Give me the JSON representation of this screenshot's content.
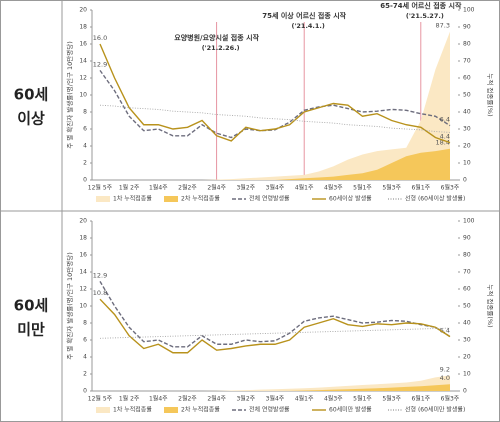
{
  "chart_data": [
    {
      "type": "line",
      "row_label": [
        "60세",
        "이상"
      ],
      "ylabel": "주 별 확진자 발생률(명/인구 10만명당)",
      "y2label": "누적 접종률(%)",
      "categories": [
        "12월 5주",
        null,
        "1월 2주",
        null,
        "1월4주",
        null,
        "2월2주",
        null,
        "2월4주",
        null,
        "3월2주",
        null,
        "3월4주",
        null,
        "4월1주",
        null,
        "4월3주",
        null,
        "5월1주",
        null,
        "5월3주",
        null,
        "6월1주",
        null,
        "6월3주"
      ],
      "ylim": [
        0,
        20
      ],
      "yticks": [
        0,
        2,
        4,
        6,
        8,
        10,
        12,
        14,
        16,
        18,
        20
      ],
      "y2lim": [
        0,
        100
      ],
      "y2ticks": [
        0,
        10,
        20,
        30,
        40,
        50,
        60,
        70,
        80,
        90,
        100
      ],
      "grid": false,
      "series": [
        {
          "name": "1차 누적접종률",
          "style": "area",
          "axis": "y2",
          "color": "#fbe8c4",
          "values": [
            0,
            0,
            0,
            0,
            0,
            0,
            0,
            0,
            0.2,
            0.5,
            1,
            1.5,
            2,
            2.5,
            3,
            5,
            8,
            12,
            15,
            17,
            18,
            19,
            35,
            65,
            87.3
          ],
          "value_labels": [
            null,
            null,
            null,
            null,
            null,
            null,
            null,
            null,
            null,
            null,
            null,
            null,
            null,
            null,
            null,
            null,
            null,
            null,
            null,
            null,
            null,
            null,
            null,
            null,
            "87.3"
          ]
        },
        {
          "name": "2차 누적접종률",
          "style": "area",
          "axis": "y2",
          "color": "#f5c75a",
          "values": [
            0,
            0,
            0,
            0,
            0,
            0,
            0,
            0,
            0,
            0,
            0,
            0,
            0,
            0.5,
            1,
            1.5,
            2,
            3,
            4,
            6,
            10,
            14,
            16,
            17,
            18.4
          ],
          "value_labels": [
            null,
            null,
            null,
            null,
            null,
            null,
            null,
            null,
            null,
            null,
            null,
            null,
            null,
            null,
            null,
            null,
            null,
            null,
            null,
            null,
            null,
            null,
            null,
            null,
            "18.4"
          ]
        },
        {
          "name": "전체 연령발생률",
          "style": "dashed",
          "color": "#6d6d7d",
          "values": [
            12.9,
            10.5,
            7.5,
            5.8,
            6,
            5.2,
            5.2,
            6.5,
            5.5,
            5,
            6,
            5.8,
            5.9,
            6.8,
            8.2,
            8.6,
            8.8,
            8.4,
            8,
            8.1,
            8.3,
            8.2,
            7.8,
            7.5,
            6.4
          ],
          "value_labels": [
            "12.9",
            null,
            null,
            null,
            null,
            null,
            null,
            null,
            null,
            null,
            null,
            null,
            null,
            null,
            null,
            null,
            null,
            null,
            null,
            null,
            null,
            null,
            null,
            null,
            "6.4"
          ]
        },
        {
          "name": "60세이상 발생률",
          "style": "solid",
          "color": "#b8921c",
          "values": [
            16,
            12,
            8.5,
            6.5,
            6.5,
            6,
            6.2,
            7,
            5.2,
            4.6,
            6.2,
            5.8,
            6,
            6.5,
            8,
            8.5,
            9,
            8.8,
            7.5,
            7.8,
            7,
            6.5,
            6.2,
            5,
            4.4
          ],
          "value_labels": [
            "16.0",
            null,
            null,
            null,
            null,
            null,
            null,
            null,
            null,
            null,
            null,
            null,
            null,
            null,
            null,
            null,
            null,
            null,
            null,
            null,
            null,
            null,
            null,
            null,
            "4.4"
          ]
        },
        {
          "name": "선형 (60세이상 발생률)",
          "style": "dotted",
          "color": "#a8a8a8",
          "values": [
            8.8,
            8.7,
            8.5,
            8.4,
            8.3,
            8.1,
            8,
            7.9,
            7.7,
            7.6,
            7.5,
            7.3,
            7.2,
            7.1,
            6.9,
            6.8,
            6.7,
            6.5,
            6.4,
            6.3,
            6.1,
            6,
            5.9,
            5.7,
            5.6
          ]
        }
      ],
      "annotations": [
        {
          "x": 8,
          "text": "요양병원/요양시설 접종 시작",
          "date": "('21.2.26.)"
        },
        {
          "x": 14,
          "text": "75세 이상 어르신 접종 시작",
          "date": "('21.4.1.)"
        },
        {
          "x": 22,
          "text": "65-74세 어르신 접종 시작",
          "date": "('21.5.27.)"
        }
      ]
    },
    {
      "type": "line",
      "row_label": [
        "60세",
        "미만"
      ],
      "ylabel": "주 별 확진자 발생률(명/인구 10만명당)",
      "y2label": "누적 접종률(%)",
      "categories": [
        "12월 5주",
        null,
        "1월 2주",
        null,
        "1월4주",
        null,
        "2월2주",
        null,
        "2월4주",
        null,
        "3월2주",
        null,
        "3월4주",
        null,
        "4월1주",
        null,
        "4월3주",
        null,
        "5월1주",
        null,
        "5월3주",
        null,
        "6월1주",
        null,
        "6월3주"
      ],
      "ylim": [
        0,
        20
      ],
      "yticks": [
        0,
        2,
        4,
        6,
        8,
        10,
        12,
        14,
        16,
        18,
        20
      ],
      "y2lim": [
        0,
        100
      ],
      "y2ticks": [
        0,
        10,
        20,
        30,
        40,
        50,
        60,
        70,
        80,
        90,
        100
      ],
      "grid": false,
      "series": [
        {
          "name": "1차 누적접종률",
          "style": "area",
          "axis": "y2",
          "color": "#fbe8c4",
          "values": [
            0,
            0,
            0,
            0,
            0,
            0,
            0,
            0,
            0.1,
            0.3,
            0.5,
            0.8,
            1,
            1.3,
            1.6,
            2,
            2.5,
            3,
            3.5,
            4,
            4.5,
            5,
            6,
            8,
            9.2
          ],
          "value_labels": [
            null,
            null,
            null,
            null,
            null,
            null,
            null,
            null,
            null,
            null,
            null,
            null,
            null,
            null,
            null,
            null,
            null,
            null,
            null,
            null,
            null,
            null,
            null,
            null,
            "9.2"
          ]
        },
        {
          "name": "2차 누적접종률",
          "style": "area",
          "axis": "y2",
          "color": "#f5c75a",
          "values": [
            0,
            0,
            0,
            0,
            0,
            0,
            0,
            0,
            0,
            0,
            0,
            0,
            0,
            0.1,
            0.3,
            0.5,
            0.8,
            1,
            1.3,
            1.6,
            2,
            2.4,
            2.8,
            3.4,
            4
          ],
          "value_labels": [
            null,
            null,
            null,
            null,
            null,
            null,
            null,
            null,
            null,
            null,
            null,
            null,
            null,
            null,
            null,
            null,
            null,
            null,
            null,
            null,
            null,
            null,
            null,
            null,
            "4.0"
          ]
        },
        {
          "name": "전체 연령발생률",
          "style": "dashed",
          "color": "#6d6d7d",
          "values": [
            12.9,
            10,
            7.5,
            5.8,
            6,
            5.2,
            5.2,
            6.5,
            5.5,
            5.5,
            6,
            5.8,
            5.9,
            6.8,
            8.2,
            8.6,
            8.8,
            8.4,
            8,
            8.1,
            8.3,
            8.2,
            7.8,
            7.5,
            6.4
          ],
          "value_labels": [
            "12.9",
            null,
            null,
            null,
            null,
            null,
            null,
            null,
            null,
            null,
            null,
            null,
            null,
            null,
            null,
            null,
            null,
            null,
            null,
            null,
            null,
            null,
            null,
            null,
            "6.4"
          ]
        },
        {
          "name": "60세미만 발생률",
          "style": "solid",
          "color": "#b8921c",
          "values": [
            10.8,
            9,
            6.5,
            5,
            5.5,
            4.5,
            4.5,
            6,
            4.8,
            5,
            5.3,
            5.5,
            5.5,
            6,
            7.5,
            8,
            8.5,
            7.8,
            7.6,
            7.9,
            7.8,
            8,
            7.9,
            7.5,
            6.4
          ],
          "value_labels": [
            "10.8",
            null,
            null,
            null,
            null,
            null,
            null,
            null,
            null,
            null,
            null,
            null,
            null,
            null,
            null,
            null,
            null,
            null,
            null,
            null,
            null,
            null,
            null,
            null,
            null
          ]
        },
        {
          "name": "선형 (60세미만 발생률)",
          "style": "dotted",
          "color": "#a8a8a8",
          "values": [
            6.2,
            6.25,
            6.3,
            6.35,
            6.4,
            6.45,
            6.5,
            6.55,
            6.6,
            6.65,
            6.7,
            6.75,
            6.8,
            6.85,
            6.9,
            6.95,
            7,
            7.05,
            7.1,
            7.15,
            7.2,
            7.25,
            7.3,
            7.35,
            7.4
          ]
        }
      ],
      "annotations": []
    }
  ]
}
